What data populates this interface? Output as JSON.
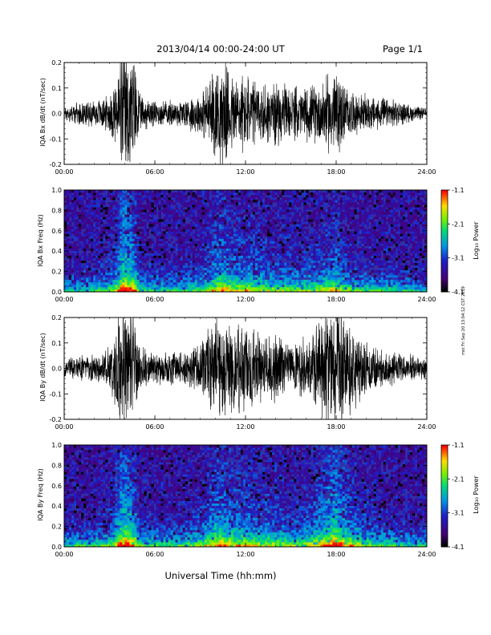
{
  "header": {
    "title": "2013/04/14  00:00-24:00 UT",
    "page": "Page 1/1"
  },
  "footer": {
    "xlabel": "Universal Time (hh:mm)",
    "stamp": "mst Fri Sep 20 13:04:12 CST 2019"
  },
  "colorbar": {
    "label": "Log₁₀ Power",
    "ticks": [
      "-1.1",
      "-2.1",
      "-3.1",
      "-4.1"
    ],
    "range": [
      -4.1,
      -1.1
    ]
  },
  "colors": {
    "trace": "#000000",
    "background_spectrogram": "#3030a8"
  },
  "chart_data": [
    {
      "type": "line",
      "title": "",
      "ylabel": "IQA Bx dB/dt (nT/sec)",
      "xlabel": "",
      "xlim": [
        "00:00",
        "24:00"
      ],
      "ylim": [
        -0.2,
        0.2
      ],
      "xticks": [
        "00:00",
        "06:00",
        "12:00",
        "18:00",
        "24:00"
      ],
      "yticks": [
        "0.2",
        "0.1",
        "0.0",
        "-0.1",
        "-0.2"
      ],
      "envelope": {
        "hours": [
          0,
          1,
          2,
          3,
          3.5,
          3.8,
          4.2,
          4.7,
          5,
          6,
          7,
          8,
          9,
          9.5,
          10,
          10.5,
          11,
          12,
          13,
          14,
          15,
          16,
          17,
          17.5,
          18,
          18.5,
          19,
          20,
          21,
          22,
          23,
          24
        ],
        "amplitude": [
          0.03,
          0.04,
          0.05,
          0.07,
          0.15,
          0.25,
          0.25,
          0.2,
          0.07,
          0.05,
          0.05,
          0.06,
          0.08,
          0.12,
          0.18,
          0.2,
          0.16,
          0.15,
          0.12,
          0.12,
          0.1,
          0.1,
          0.12,
          0.15,
          0.17,
          0.12,
          0.08,
          0.07,
          0.06,
          0.05,
          0.03,
          0.02
        ]
      }
    },
    {
      "type": "heatmap",
      "title": "",
      "ylabel": "IQA Bx Freq (Hz)",
      "xlabel": "",
      "xlim": [
        "00:00",
        "24:00"
      ],
      "ylim": [
        0.0,
        1.0
      ],
      "xticks": [
        "00:00",
        "06:00",
        "12:00",
        "18:00",
        "24:00"
      ],
      "yticks": [
        "1.0",
        "0.8",
        "0.6",
        "0.4",
        "0.2",
        "0.0"
      ],
      "value_label": "Log₁₀ Power",
      "value_range": [
        -4.1,
        -1.1
      ]
    },
    {
      "type": "line",
      "title": "",
      "ylabel": "IQA By dB/dt (nT/sec)",
      "xlabel": "",
      "xlim": [
        "00:00",
        "24:00"
      ],
      "ylim": [
        -0.2,
        0.2
      ],
      "xticks": [
        "00:00",
        "06:00",
        "12:00",
        "18:00",
        "24:00"
      ],
      "yticks": [
        "0.2",
        "0.1",
        "0.0",
        "-0.1",
        "-0.2"
      ],
      "envelope": {
        "hours": [
          0,
          1,
          2,
          3,
          3.5,
          3.8,
          4.2,
          4.7,
          5,
          6,
          7,
          8,
          9,
          9.5,
          10,
          10.5,
          11,
          12,
          13,
          14,
          15,
          16,
          17,
          17.5,
          18,
          18.5,
          19,
          20,
          21,
          22,
          23,
          24
        ],
        "amplitude": [
          0.04,
          0.05,
          0.05,
          0.08,
          0.18,
          0.25,
          0.25,
          0.2,
          0.08,
          0.06,
          0.06,
          0.07,
          0.1,
          0.15,
          0.2,
          0.2,
          0.18,
          0.16,
          0.13,
          0.14,
          0.1,
          0.12,
          0.18,
          0.22,
          0.25,
          0.2,
          0.16,
          0.1,
          0.08,
          0.06,
          0.05,
          0.04
        ]
      }
    },
    {
      "type": "heatmap",
      "title": "",
      "ylabel": "IQA By Freq (Hz)",
      "xlabel": "Universal Time (hh:mm)",
      "xlim": [
        "00:00",
        "24:00"
      ],
      "ylim": [
        0.0,
        1.0
      ],
      "xticks": [
        "00:00",
        "06:00",
        "12:00",
        "18:00",
        "24:00"
      ],
      "yticks": [
        "1.0",
        "0.8",
        "0.6",
        "0.4",
        "0.2",
        "0.0"
      ],
      "value_label": "Log₁₀ Power",
      "value_range": [
        -4.1,
        -1.1
      ]
    }
  ]
}
